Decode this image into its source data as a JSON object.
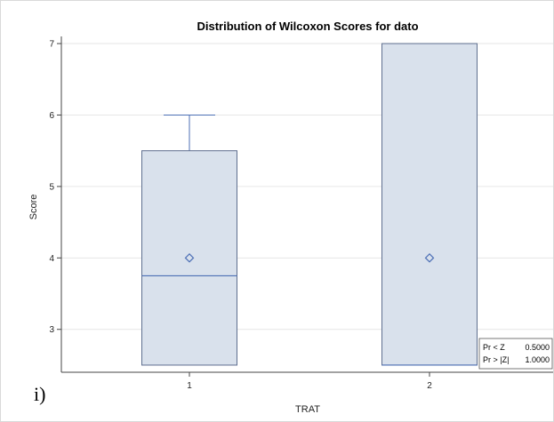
{
  "panel_label": "i)",
  "colors": {
    "box_fill": "#d9e1ec",
    "box_edge": "#5f6f8f",
    "median": "#4c6fb5",
    "whisker": "#4c6fb5",
    "mean_marker": "#4c6fb5",
    "grid": "#e6e6e6"
  },
  "chart_data": {
    "type": "box",
    "title": "Distribution of Wilcoxon Scores for dato",
    "xlabel": "TRAT",
    "ylabel": "Score",
    "ylim": [
      2.4,
      7.1
    ],
    "yticks": [
      3,
      4,
      5,
      6,
      7
    ],
    "grid": true,
    "categories": [
      "1",
      "2"
    ],
    "boxes": [
      {
        "category": "1",
        "min": 2.5,
        "q1": 2.5,
        "median": 3.75,
        "q3": 5.5,
        "max": 6.0,
        "mean": 4.0
      },
      {
        "category": "2",
        "min": 2.5,
        "q1": 2.5,
        "median": 2.5,
        "q3": 7.0,
        "max": 7.0,
        "mean": 4.0
      }
    ],
    "inset": {
      "placement": "bottom-right",
      "rows": [
        {
          "label": "Pr < Z",
          "value": "0.5000"
        },
        {
          "label": "Pr > |Z|",
          "value": "1.0000"
        }
      ]
    }
  }
}
